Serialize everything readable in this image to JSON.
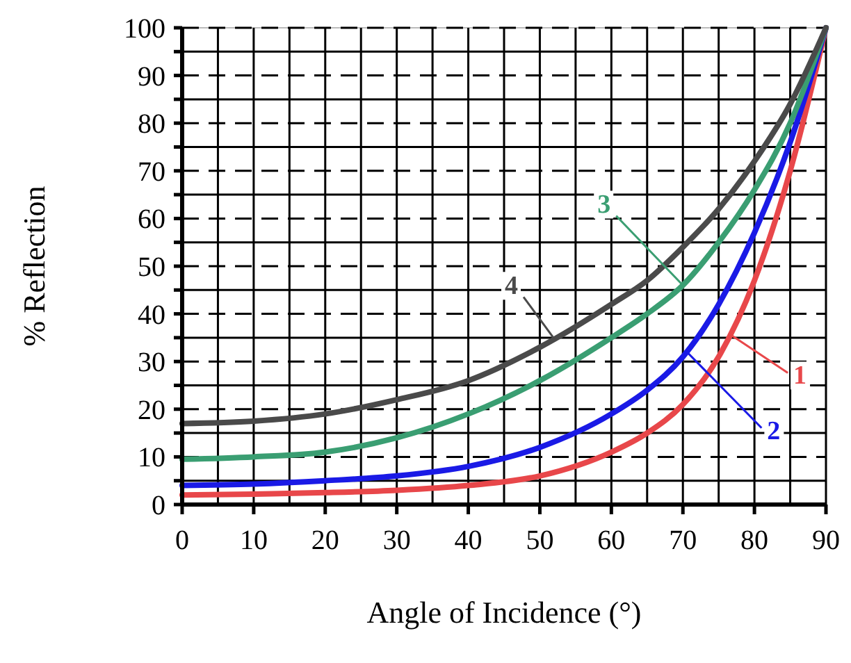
{
  "chart_data": {
    "type": "line",
    "xlabel": "Angle of Incidence (°)",
    "ylabel": "% Reflection",
    "xlim": [
      0,
      90
    ],
    "ylim": [
      0,
      100
    ],
    "xticks": [
      0,
      10,
      20,
      30,
      40,
      50,
      60,
      70,
      80,
      90
    ],
    "yticks": [
      0,
      10,
      20,
      30,
      40,
      50,
      60,
      70,
      80,
      90,
      100
    ],
    "grid": true,
    "marker": "none",
    "line_style": "solid",
    "series": [
      {
        "name": "1",
        "color": "#e8474a",
        "x": [
          0,
          10,
          20,
          30,
          40,
          50,
          60,
          65,
          70,
          75,
          80,
          85,
          90
        ],
        "values": [
          2,
          2.2,
          2.5,
          3,
          4,
          6,
          11,
          15,
          21,
          31,
          47,
          70,
          100
        ]
      },
      {
        "name": "2",
        "color": "#1a1ae6",
        "x": [
          0,
          10,
          20,
          30,
          40,
          50,
          60,
          65,
          70,
          75,
          80,
          85,
          90
        ],
        "values": [
          4,
          4.3,
          5,
          6,
          8,
          12,
          19,
          24,
          31,
          42,
          57,
          76,
          100
        ]
      },
      {
        "name": "3",
        "color": "#3a9e72",
        "x": [
          0,
          10,
          20,
          30,
          40,
          50,
          60,
          65,
          70,
          75,
          80,
          85,
          90
        ],
        "values": [
          9.5,
          10,
          11,
          14,
          19,
          26,
          35,
          40,
          46,
          55,
          66,
          80,
          100
        ]
      },
      {
        "name": "4",
        "color": "#4a4a4a",
        "x": [
          0,
          10,
          20,
          30,
          40,
          50,
          60,
          65,
          70,
          75,
          80,
          85,
          90
        ],
        "values": [
          17,
          17.5,
          19,
          22,
          26,
          33,
          42,
          47,
          54,
          62,
          72,
          84,
          100
        ]
      }
    ]
  }
}
